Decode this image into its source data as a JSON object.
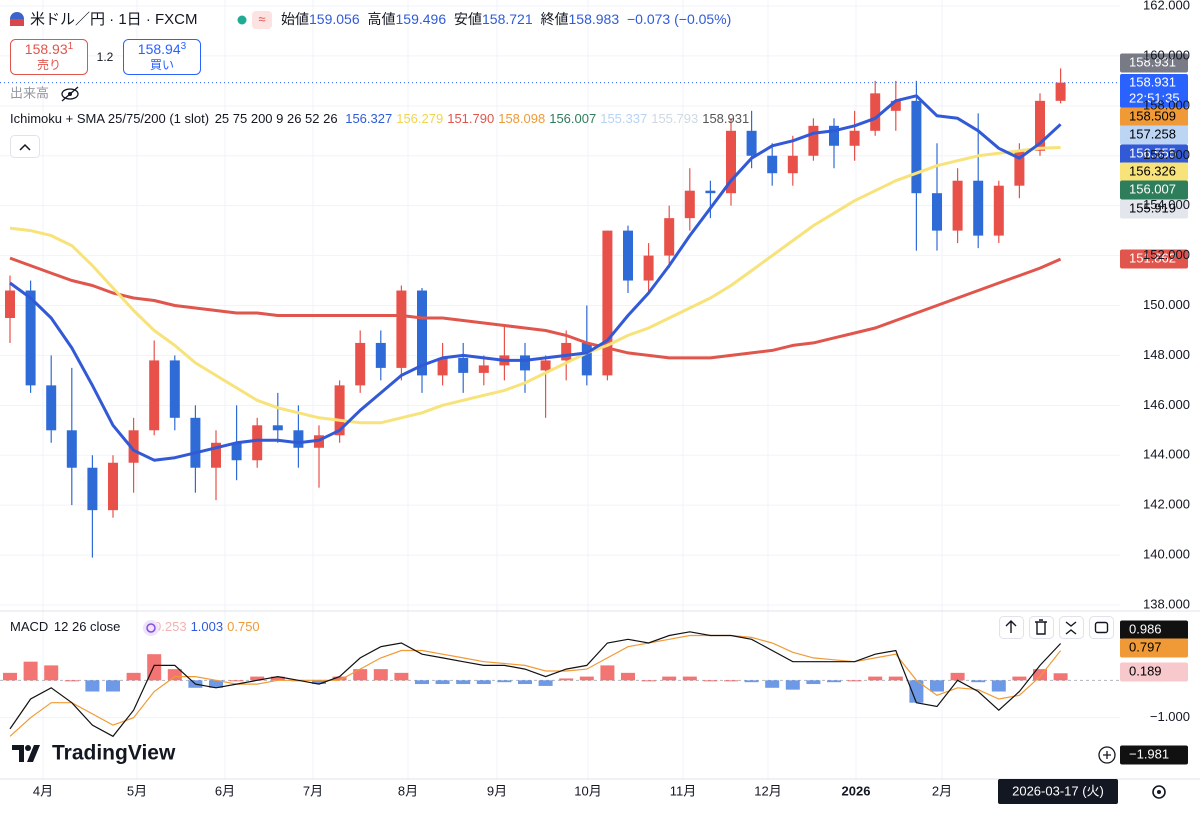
{
  "header": {
    "symbol": "米ドル／円 · 1日 · FXCM",
    "badge": "≈",
    "open_label": "始値",
    "open": "159.056",
    "high_label": "高値",
    "high": "159.496",
    "low_label": "安値",
    "low": "158.721",
    "close_label": "終値",
    "close": "158.983",
    "change": "−0.073 (−0.05%)",
    "sell": {
      "price": "158.93",
      "pip": "1",
      "label": "売り"
    },
    "spread": "1.2",
    "buy": {
      "price": "158.94",
      "pip": "3",
      "label": "買い"
    },
    "volume": "出来高",
    "indicator": {
      "name": "Ichimoku + SMA 25/75/200 (1 slot)",
      "params": "25 75 200 9 26 52 26",
      "values": [
        {
          "text": "156.327",
          "color": "#2f5bd8"
        },
        {
          "text": "156.279",
          "color": "#f2d54e"
        },
        {
          "text": "151.790",
          "color": "#e0554c"
        },
        {
          "text": "158.098",
          "color": "#f09a37"
        },
        {
          "text": "156.007",
          "color": "#2e7d5b"
        },
        {
          "text": "155.337",
          "color": "#b7d3f5"
        },
        {
          "text": "155.793",
          "color": "#cfd8e3"
        },
        {
          "text": "158.931",
          "color": "#555555"
        }
      ]
    },
    "logo": "TradingView"
  },
  "chart_data": [
    {
      "type": "candlestick",
      "ylim": [
        138,
        162
      ],
      "yticks": [
        {
          "value": 138,
          "label": "138.000"
        },
        {
          "value": 140,
          "label": "140.000"
        },
        {
          "value": 142,
          "label": "142.000"
        },
        {
          "value": 144,
          "label": "144.000"
        },
        {
          "value": 146,
          "label": "146.000"
        },
        {
          "value": 148,
          "label": "148.000"
        },
        {
          "value": 150,
          "label": "150.000"
        },
        {
          "value": 152,
          "label": "152.000"
        },
        {
          "value": 154,
          "label": "154.000"
        },
        {
          "value": 156,
          "label": "156.000"
        },
        {
          "value": 158,
          "label": "158.000"
        },
        {
          "value": 160,
          "label": "160.000"
        },
        {
          "value": 162,
          "label": "162.000"
        }
      ],
      "xticks": [
        "4月",
        "5月",
        "6月",
        "7月",
        "8月",
        "9月",
        "10月",
        "11月",
        "12月",
        "2026",
        "2月"
      ],
      "grid": true,
      "up_color": "#e8504a",
      "down_color": "#2f6bd6",
      "open": [
        149.5,
        150.6,
        146.8,
        145.0,
        143.5,
        141.8,
        143.7,
        145.0,
        147.8,
        145.5,
        143.5,
        144.5,
        143.8,
        145.2,
        145.0,
        144.3,
        144.8,
        146.8,
        148.5,
        147.5,
        150.6,
        147.2,
        147.9,
        147.3,
        147.6,
        148.0,
        147.4,
        147.8,
        148.5,
        147.2,
        153.0,
        151.0,
        152.0,
        153.5,
        154.6,
        154.5,
        157.0,
        156.0,
        155.3,
        156.0,
        157.2,
        156.4,
        157.0,
        157.8,
        158.2,
        154.5,
        153.0,
        155.0,
        152.8,
        154.8,
        156.2,
        158.2
      ],
      "high": [
        151.2,
        151.0,
        148.0,
        147.5,
        144.0,
        144.0,
        145.5,
        148.6,
        148.0,
        146.0,
        145.0,
        146.0,
        145.5,
        146.5,
        146.0,
        145.2,
        147.0,
        149.0,
        149.0,
        150.8,
        150.7,
        148.5,
        148.5,
        148.0,
        149.2,
        148.5,
        148.0,
        149.0,
        150.0,
        153.0,
        153.2,
        152.5,
        154.0,
        155.5,
        155.0,
        157.5,
        157.8,
        156.5,
        156.8,
        157.5,
        157.5,
        157.8,
        159.0,
        159.0,
        159.0,
        156.5,
        155.5,
        157.7,
        155.0,
        156.5,
        158.5,
        159.5
      ],
      "low": [
        148.5,
        146.5,
        144.5,
        142.0,
        139.9,
        141.5,
        142.5,
        144.8,
        145.0,
        142.5,
        142.2,
        143.0,
        143.5,
        144.5,
        143.5,
        142.7,
        144.5,
        146.5,
        147.0,
        147.0,
        146.5,
        146.8,
        146.5,
        146.8,
        147.0,
        146.5,
        145.5,
        147.0,
        146.8,
        147.0,
        150.5,
        150.5,
        151.5,
        153.0,
        153.5,
        154.0,
        155.5,
        154.8,
        154.8,
        155.8,
        155.5,
        155.8,
        156.8,
        157.0,
        152.2,
        152.2,
        152.5,
        152.3,
        152.5,
        154.3,
        156.0,
        158.1
      ],
      "close": [
        150.6,
        146.8,
        145.0,
        143.5,
        141.8,
        143.7,
        145.0,
        147.8,
        145.5,
        143.5,
        144.5,
        143.8,
        145.2,
        145.0,
        144.3,
        144.8,
        146.8,
        148.5,
        147.5,
        150.6,
        147.2,
        147.9,
        147.3,
        147.6,
        148.0,
        147.4,
        147.8,
        148.5,
        147.2,
        153.0,
        151.0,
        152.0,
        153.5,
        154.6,
        154.5,
        157.0,
        156.0,
        155.3,
        156.0,
        157.2,
        156.4,
        157.0,
        158.5,
        158.2,
        154.5,
        153.0,
        155.0,
        152.8,
        154.8,
        156.2,
        158.2,
        158.931
      ],
      "series": [
        {
          "color": "#e0554c",
          "values": [
            151.9,
            151.6,
            151.3,
            151.0,
            150.8,
            150.5,
            150.3,
            150.2,
            150.0,
            149.9,
            149.8,
            149.7,
            149.7,
            149.6,
            149.6,
            149.6,
            149.6,
            149.6,
            149.6,
            149.6,
            149.5,
            149.5,
            149.4,
            149.3,
            149.2,
            149.1,
            149.0,
            148.8,
            148.5,
            148.3,
            148.1,
            148.0,
            147.9,
            147.9,
            147.9,
            148.0,
            148.1,
            148.2,
            148.4,
            148.5,
            148.7,
            148.9,
            149.1,
            149.4,
            149.7,
            150.0,
            150.3,
            150.6,
            150.9,
            151.2,
            151.5,
            151.86
          ]
        },
        {
          "color": "#f7e37a",
          "values": [
            153.1,
            153.0,
            152.8,
            152.4,
            151.6,
            150.7,
            149.8,
            149.0,
            148.4,
            147.7,
            147.2,
            146.7,
            146.2,
            145.9,
            145.7,
            145.5,
            145.4,
            145.3,
            145.3,
            145.5,
            145.7,
            146.0,
            146.2,
            146.4,
            146.6,
            146.9,
            147.3,
            147.7,
            148.1,
            148.4,
            148.8,
            149.1,
            149.5,
            149.9,
            150.3,
            150.8,
            151.4,
            152.0,
            152.6,
            153.2,
            153.7,
            154.2,
            154.6,
            155.0,
            155.3,
            155.6,
            155.8,
            156.0,
            156.1,
            156.2,
            156.3,
            156.33
          ]
        },
        {
          "color": "#3259d6",
          "values": [
            150.9,
            150.3,
            149.5,
            148.3,
            146.8,
            145.2,
            144.2,
            143.8,
            143.9,
            144.1,
            144.3,
            144.5,
            144.6,
            144.6,
            144.5,
            144.6,
            145.0,
            145.8,
            146.5,
            147.2,
            147.6,
            147.9,
            148.0,
            147.9,
            147.8,
            147.8,
            147.9,
            148.0,
            148.1,
            148.6,
            149.6,
            150.5,
            151.6,
            152.8,
            153.9,
            155.0,
            155.9,
            156.4,
            156.6,
            156.9,
            157.0,
            157.2,
            157.5,
            158.2,
            158.4,
            157.6,
            157.5,
            157.0,
            156.3,
            155.9,
            156.5,
            157.26
          ]
        }
      ],
      "last_price_line": 158.931,
      "price_tags": [
        {
          "text": "158.931",
          "color": "#787b86",
          "text_color": "#ffffff"
        },
        {
          "text": "158.931",
          "sub": "22:51:35",
          "color": "#2962ff",
          "text_color": "#ffffff"
        },
        {
          "text": "158.509",
          "color": "#f09a37",
          "text_color": "#000000"
        },
        {
          "text": "157.258",
          "color": "#bcd5f5",
          "text_color": "#000000"
        },
        {
          "text": "156.555",
          "color": "#3259d6",
          "text_color": "#ffffff"
        },
        {
          "text": "156.326",
          "color": "#f7e37a",
          "text_color": "#000000"
        },
        {
          "text": "156.007",
          "color": "#2e7d5b",
          "text_color": "#ffffff"
        },
        {
          "text": "155.919",
          "color": "#e3e6ec",
          "text_color": "#000000"
        },
        {
          "text": "151.862",
          "color": "#e0554c",
          "text_color": "#ffffff"
        }
      ],
      "crosshair_date": "2026-03-17 (火)"
    },
    {
      "type": "macd",
      "title": "MACD",
      "params": "12 26 close",
      "legend_values": [
        {
          "text": "0.253",
          "color": "#f4b2b2"
        },
        {
          "text": "1.003",
          "color": "#2f5bd8"
        },
        {
          "text": "0.750",
          "color": "#f09a37"
        }
      ],
      "ylim": [
        -2.67,
        1.83
      ],
      "yticks": [
        {
          "value": -1,
          "label": "−1.000"
        }
      ],
      "macd_color": "#111111",
      "signal_color": "#f09a37",
      "hist_up_color": "#ef5350",
      "hist_down_color": "#4a7fe0",
      "macd": [
        -1.3,
        -0.5,
        -0.2,
        -0.6,
        -1.2,
        -1.5,
        -0.8,
        0.4,
        0.4,
        -0.1,
        -0.2,
        -0.1,
        0.0,
        0.1,
        0.0,
        -0.1,
        0.1,
        0.6,
        0.9,
        1.0,
        0.7,
        0.6,
        0.5,
        0.4,
        0.4,
        0.3,
        0.1,
        0.3,
        0.4,
        1.0,
        1.1,
        1.0,
        1.2,
        1.3,
        1.2,
        1.2,
        1.1,
        0.8,
        0.5,
        0.5,
        0.5,
        0.5,
        0.7,
        0.8,
        -0.6,
        -0.7,
        0.0,
        -0.3,
        -0.8,
        -0.3,
        0.4,
        0.986
      ],
      "signal": [
        -1.5,
        -1.0,
        -0.6,
        -0.6,
        -0.9,
        -1.2,
        -1.0,
        -0.3,
        0.1,
        0.1,
        0.0,
        -0.1,
        -0.1,
        0.0,
        0.0,
        0.0,
        0.0,
        0.3,
        0.6,
        0.8,
        0.8,
        0.7,
        0.6,
        0.5,
        0.45,
        0.4,
        0.25,
        0.25,
        0.3,
        0.6,
        0.9,
        1.0,
        1.1,
        1.2,
        1.2,
        1.2,
        1.15,
        1.0,
        0.75,
        0.6,
        0.55,
        0.5,
        0.6,
        0.7,
        0.0,
        -0.4,
        -0.2,
        -0.25,
        -0.5,
        -0.4,
        0.1,
        0.797
      ],
      "histogram": [
        0.2,
        0.5,
        0.4,
        0.0,
        -0.3,
        -0.3,
        0.2,
        0.7,
        0.3,
        -0.2,
        -0.2,
        0.0,
        0.1,
        0.1,
        0.0,
        -0.1,
        0.1,
        0.3,
        0.3,
        0.2,
        -0.1,
        -0.1,
        -0.1,
        -0.1,
        -0.05,
        -0.1,
        -0.15,
        0.05,
        0.1,
        0.4,
        0.2,
        0.0,
        0.1,
        0.1,
        0.0,
        0.0,
        -0.05,
        -0.2,
        -0.25,
        -0.1,
        -0.05,
        0.0,
        0.1,
        0.1,
        -0.6,
        -0.3,
        0.2,
        -0.05,
        -0.3,
        0.1,
        0.3,
        0.189
      ],
      "tags": [
        {
          "text": "0.986",
          "color": "#111111",
          "text_color": "#ffffff"
        },
        {
          "text": "0.797",
          "color": "#f09a37",
          "text_color": "#000000"
        },
        {
          "text": "0.189",
          "color": "#f8c9cc",
          "text_color": "#000000"
        },
        {
          "text": "−1.981",
          "color": "#111111",
          "text_color": "#ffffff"
        }
      ]
    }
  ]
}
